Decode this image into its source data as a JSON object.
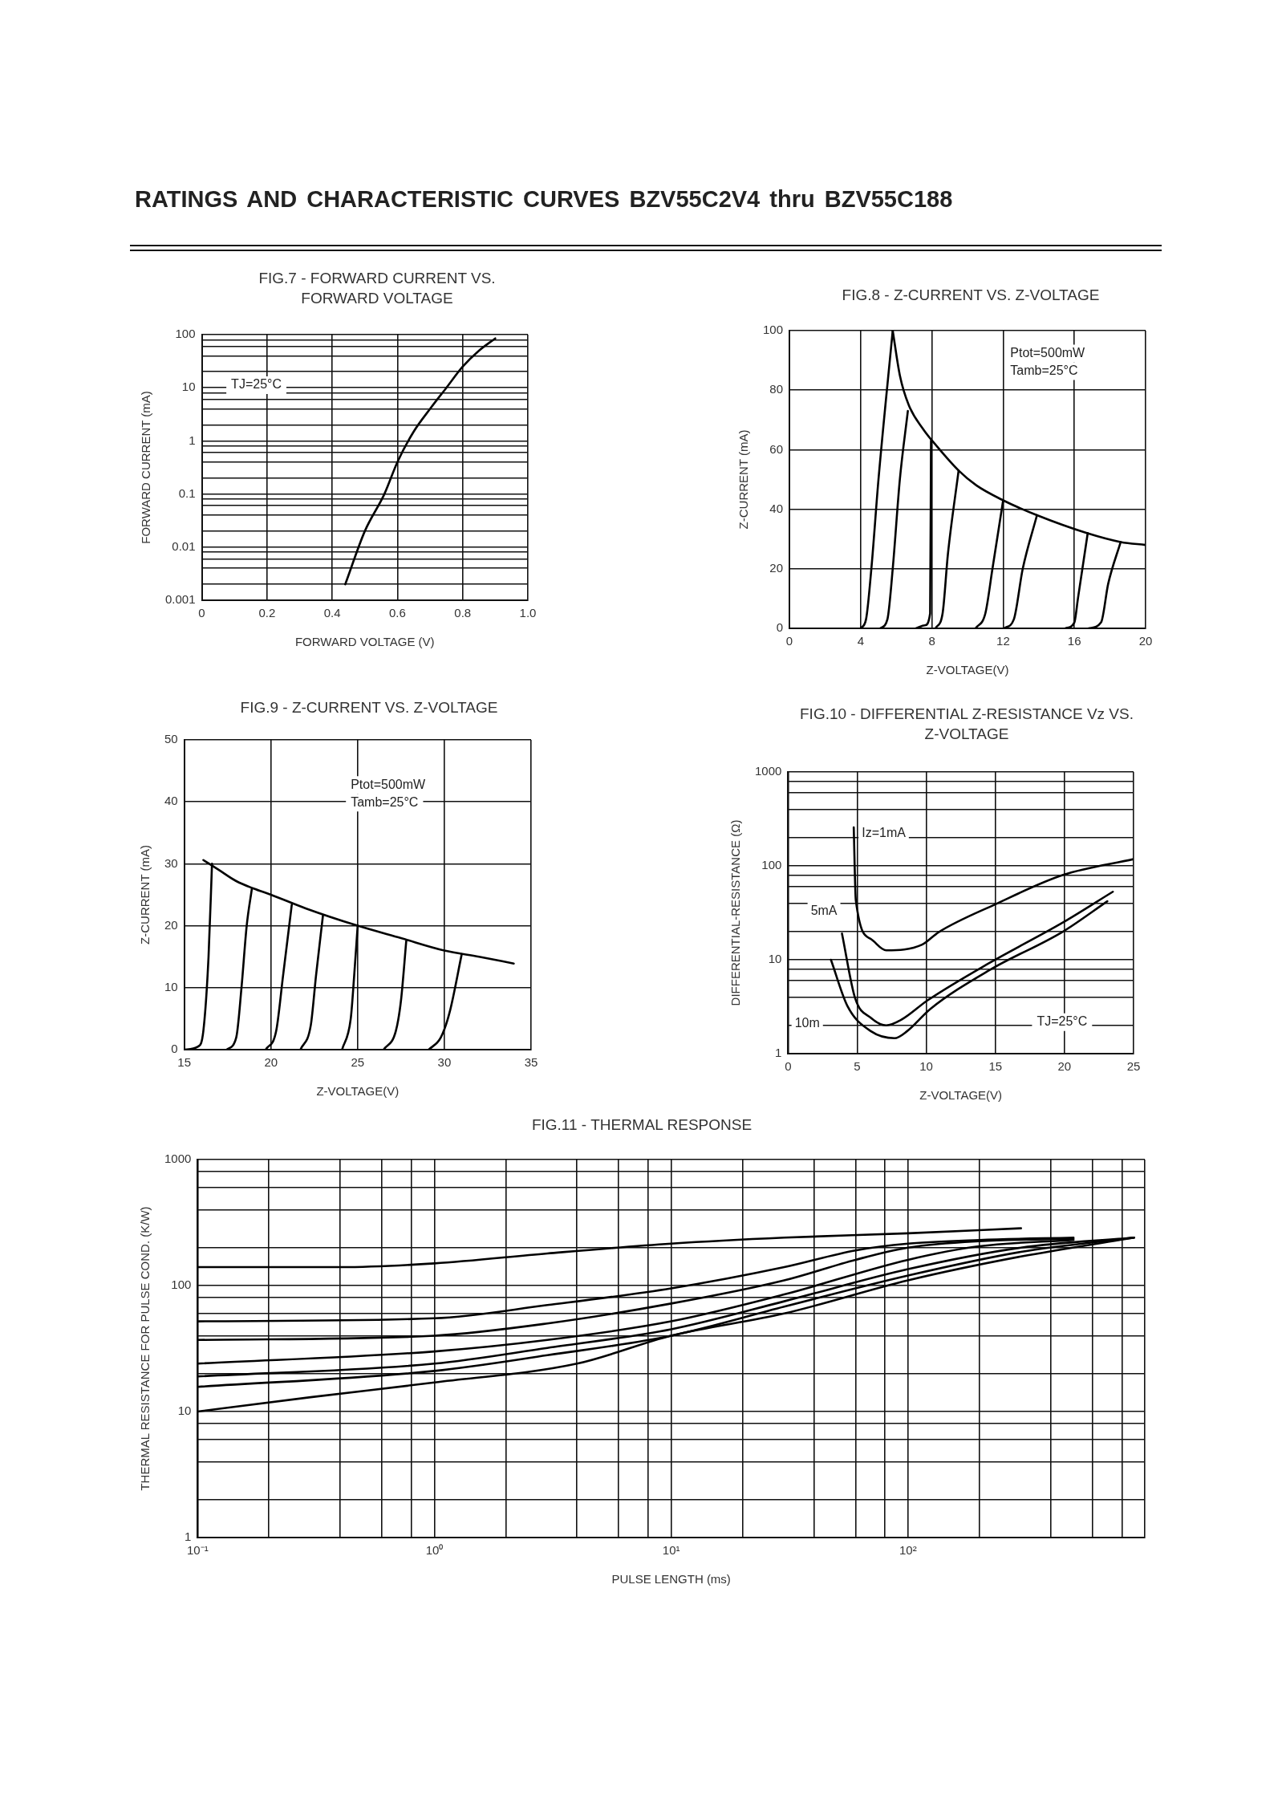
{
  "chart_data": [
    {
      "type": "other",
      "title": "RATINGS AND CHARACTERISTIC CURVES BZV55C2V4 thru BZV55C188"
    },
    {
      "type": "line",
      "title": "FIG.7 - FORWARD CURRENT VS. FORWARD VOLTAGE",
      "xlabel": "FORWARD VOLTAGE (V)",
      "ylabel": "FORWARD CURRENT (mA)",
      "log": "y",
      "grid": true,
      "marker": "none",
      "annotations": [
        "TJ=25°C"
      ],
      "xlim": [
        0,
        1
      ],
      "xticks": [
        0,
        0.2,
        0.4,
        0.6,
        0.8,
        {
          "value": 1,
          "label": "1.0"
        }
      ],
      "ylim": [
        0.001,
        100
      ],
      "yticks": [
        0.001,
        {
          "value": 0.002,
          "label": null
        },
        {
          "value": 0.004,
          "label": null
        },
        {
          "value": 0.006,
          "label": null
        },
        {
          "value": 0.008,
          "label": null
        },
        0.01,
        {
          "value": 0.02,
          "label": null
        },
        {
          "value": 0.04,
          "label": null
        },
        {
          "value": 0.06,
          "label": null
        },
        {
          "value": 0.08,
          "label": null
        },
        0.1,
        {
          "value": 0.2,
          "label": null
        },
        {
          "value": 0.4,
          "label": null
        },
        {
          "value": 0.6,
          "label": null
        },
        {
          "value": 0.8,
          "label": null
        },
        1,
        {
          "value": 2,
          "label": null
        },
        {
          "value": 4,
          "label": null
        },
        {
          "value": 6,
          "label": null
        },
        {
          "value": 8,
          "label": null
        },
        10,
        {
          "value": 20,
          "label": null
        },
        {
          "value": 40,
          "label": null
        },
        {
          "value": 60,
          "label": null
        },
        {
          "value": 80,
          "label": null
        },
        100
      ],
      "series": [
        {
          "color": "#000000",
          "x": [
            0.44,
            0.5,
            0.56,
            0.6,
            0.65,
            0.7,
            0.75,
            0.8,
            0.85,
            0.9
          ],
          "values": [
            0.002,
            0.02,
            0.1,
            0.4,
            1.5,
            4,
            10,
            25,
            50,
            85
          ]
        }
      ]
    },
    {
      "type": "line",
      "title": "FIG.8 - Z-CURRENT VS. Z-VOLTAGE",
      "xlabel": "Z-VOLTAGE(V)",
      "ylabel": "Z-CURRENT (mA)",
      "grid": true,
      "marker": "none",
      "annotations": [
        "Ptot=500mW",
        "Tamb=25°C"
      ],
      "xlim": [
        0,
        20
      ],
      "xticks": [
        0,
        4,
        8,
        12,
        16,
        20
      ],
      "ylim": [
        0,
        100
      ],
      "yticks": [
        0,
        20,
        40,
        60,
        80,
        100
      ],
      "series": [
        {
          "color": "#000000",
          "x": [
            4,
            4.3,
            4.6,
            5,
            5.8
          ],
          "values": [
            0,
            3,
            20,
            50,
            100
          ]
        },
        {
          "color": "#000000",
          "x": [
            5.1,
            5.5,
            5.8,
            6.2,
            6.65
          ],
          "values": [
            0,
            3,
            20,
            50,
            73
          ]
        },
        {
          "color": "#000000",
          "x": [
            7.1,
            7.6,
            7.9,
            7.95
          ],
          "values": [
            0,
            1,
            5,
            63
          ]
        },
        {
          "color": "#000000",
          "x": [
            8.2,
            8.6,
            8.9,
            9.5
          ],
          "values": [
            0,
            5,
            25,
            53
          ]
        },
        {
          "color": "#000000",
          "x": [
            10.45,
            11,
            11.4,
            12
          ],
          "values": [
            0,
            5,
            20,
            43
          ]
        },
        {
          "color": "#000000",
          "x": [
            12.05,
            12.6,
            13.1,
            13.9
          ],
          "values": [
            0,
            3,
            20,
            38
          ]
        },
        {
          "color": "#000000",
          "x": [
            15.5,
            16,
            16.2,
            16.75
          ],
          "values": [
            0,
            2,
            10,
            32
          ]
        },
        {
          "color": "#000000",
          "x": [
            16.8,
            17.5,
            17.9,
            18.6
          ],
          "values": [
            0,
            2,
            15,
            29
          ]
        },
        {
          "color": "#000000",
          "x": [
            5.8,
            6.2,
            6.7,
            7.5,
            8.3,
            9.5,
            10.5,
            12,
            13.9,
            16.7,
            18.6,
            20
          ],
          "values": [
            100,
            85,
            75,
            67,
            61,
            53,
            48,
            43,
            38,
            32,
            29,
            28
          ]
        }
      ]
    },
    {
      "type": "line",
      "title": "FIG.9 - Z-CURRENT VS. Z-VOLTAGE",
      "xlabel": "Z-VOLTAGE(V)",
      "ylabel": "Z-CURRENT (mA)",
      "grid": true,
      "marker": "none",
      "annotations": [
        "Ptot=500mW",
        "Tamb=25°C"
      ],
      "xlim": [
        15,
        35
      ],
      "xticks": [
        15,
        20,
        25,
        30,
        35
      ],
      "ylim": [
        0,
        50
      ],
      "yticks": [
        0,
        10,
        20,
        30,
        40,
        50
      ],
      "series": [
        {
          "color": "#000000",
          "x": [
            15,
            15.8,
            16.1,
            16.4,
            16.6
          ],
          "values": [
            0,
            0.5,
            3,
            15,
            30
          ]
        },
        {
          "color": "#000000",
          "x": [
            17.45,
            18,
            18.3,
            18.6,
            18.9
          ],
          "values": [
            0,
            2,
            10,
            20,
            26
          ]
        },
        {
          "color": "#000000",
          "x": [
            19.7,
            20.3,
            20.7,
            21.2
          ],
          "values": [
            0,
            3,
            12,
            23.4
          ]
        },
        {
          "color": "#000000",
          "x": [
            21.7,
            22.3,
            22.6,
            23
          ],
          "values": [
            0,
            4,
            12,
            21.7
          ]
        },
        {
          "color": "#000000",
          "x": [
            24.1,
            24.6,
            24.8,
            25
          ],
          "values": [
            0,
            5,
            12,
            20
          ]
        },
        {
          "color": "#000000",
          "x": [
            26.5,
            27.2,
            27.5,
            27.8
          ],
          "values": [
            0,
            3,
            8,
            17.5
          ]
        },
        {
          "color": "#000000",
          "x": [
            29.1,
            29.8,
            30.3,
            31
          ],
          "values": [
            0,
            2,
            6,
            15.4
          ]
        },
        {
          "color": "#000000",
          "x": [
            16.1,
            17,
            18,
            19,
            20,
            22,
            25,
            27.5,
            30,
            32,
            34
          ],
          "values": [
            30.6,
            29,
            27.2,
            26,
            25,
            22.8,
            20,
            18,
            16,
            15,
            13.9
          ]
        }
      ]
    },
    {
      "type": "line",
      "title": "FIG.10 - DIFFERENTIAL Z-RESISTANCE Vz VS. Z-VOLTAGE",
      "xlabel": "Z-VOLTAGE(V)",
      "ylabel": "DIFFERENTIAL-RESISTANCE (Ω)",
      "log": "y",
      "grid": true,
      "marker": "none",
      "annotations": [
        "TJ=25°C"
      ],
      "xlim": [
        0,
        25
      ],
      "xticks": [
        0,
        5,
        10,
        15,
        20,
        25
      ],
      "ylim": [
        1,
        1000
      ],
      "yticks": [
        1,
        {
          "value": 2,
          "label": null
        },
        {
          "value": 4,
          "label": null
        },
        {
          "value": 6,
          "label": null
        },
        {
          "value": 8,
          "label": null
        },
        10,
        {
          "value": 20,
          "label": null
        },
        {
          "value": 40,
          "label": null
        },
        {
          "value": 60,
          "label": null
        },
        {
          "value": 80,
          "label": null
        },
        100,
        {
          "value": 200,
          "label": null
        },
        {
          "value": 400,
          "label": null
        },
        {
          "value": 600,
          "label": null
        },
        {
          "value": 800,
          "label": null
        },
        1000
      ],
      "series": [
        {
          "name": "Iz=1mA",
          "color": "#000000",
          "x": [
            4.75,
            4.9,
            6,
            7.1,
            9.7,
            10.9,
            15,
            19.9,
            25
          ],
          "values": [
            257,
            43,
            16.6,
            12.6,
            14.5,
            19.7,
            39,
            80,
            118
          ]
        },
        {
          "name": "5mA",
          "color": "#000000",
          "x": [
            3.9,
            4.85,
            6,
            7.1,
            8.2,
            10.1,
            14.6,
            19.9,
            23.5
          ],
          "values": [
            19,
            3.9,
            2.4,
            2,
            2.3,
            3.7,
            9.3,
            25,
            53
          ]
        },
        {
          "name": "10m",
          "color": "#000000",
          "x": [
            3.1,
            4.3,
            6,
            7.7,
            8.6,
            10.3,
            14.6,
            19.9,
            23.1
          ],
          "values": [
            10,
            3.2,
            1.73,
            1.46,
            1.73,
            3,
            7.8,
            20,
            42
          ]
        }
      ]
    },
    {
      "type": "line",
      "title": "FIG.11 - THERMAL RESPONSE",
      "xlabel": "PULSE LENGTH (ms)",
      "ylabel": "THERMAL RESISTANCE FOR PULSE COND. (K/W)",
      "log": "xy",
      "grid": true,
      "marker": "none",
      "xlim": [
        0.1,
        1000
      ],
      "xticks": [
        {
          "value": 0.1,
          "label": "10⁻¹"
        },
        {
          "value": 0.2,
          "label": null
        },
        {
          "value": 0.4,
          "label": null
        },
        {
          "value": 0.6,
          "label": null
        },
        {
          "value": 0.8,
          "label": null
        },
        {
          "value": 1,
          "label": "10⁰"
        },
        {
          "value": 2,
          "label": null
        },
        {
          "value": 4,
          "label": null
        },
        {
          "value": 6,
          "label": null
        },
        {
          "value": 8,
          "label": null
        },
        {
          "value": 10,
          "label": "10¹"
        },
        {
          "value": 20,
          "label": null
        },
        {
          "value": 40,
          "label": null
        },
        {
          "value": 60,
          "label": null
        },
        {
          "value": 80,
          "label": null
        },
        {
          "value": 100,
          "label": "10²"
        },
        {
          "value": 200,
          "label": null
        },
        {
          "value": 400,
          "label": null
        },
        {
          "value": 600,
          "label": null
        },
        {
          "value": 800,
          "label": null
        },
        {
          "value": 1000,
          "label": null
        }
      ],
      "ylim": [
        1,
        1000
      ],
      "yticks": [
        1,
        {
          "value": 2,
          "label": null
        },
        {
          "value": 4,
          "label": null
        },
        {
          "value": 6,
          "label": null
        },
        {
          "value": 8,
          "label": null
        },
        10,
        {
          "value": 20,
          "label": null
        },
        {
          "value": 40,
          "label": null
        },
        {
          "value": 60,
          "label": null
        },
        {
          "value": 80,
          "label": null
        },
        100,
        {
          "value": 200,
          "label": null
        },
        {
          "value": 400,
          "label": null
        },
        {
          "value": 600,
          "label": null
        },
        {
          "value": 800,
          "label": null
        },
        1000
      ],
      "series": [
        {
          "color": "#000000",
          "x": [
            0.1,
            0.4,
            1,
            3,
            10,
            30,
            100,
            300
          ],
          "values": [
            140,
            140,
            150,
            180,
            215,
            240,
            260,
            285
          ]
        },
        {
          "color": "#000000",
          "x": [
            0.1,
            1,
            3,
            10,
            30,
            60,
            100,
            200,
            500
          ],
          "values": [
            52,
            55,
            70,
            95,
            140,
            190,
            215,
            230,
            240
          ]
        },
        {
          "color": "#000000",
          "x": [
            0.1,
            1,
            3,
            10,
            30,
            60,
            100,
            200,
            500
          ],
          "values": [
            37,
            40,
            50,
            72,
            110,
            160,
            200,
            225,
            235
          ]
        },
        {
          "color": "#000000",
          "x": [
            0.1,
            1,
            3,
            10,
            30,
            100,
            200,
            500
          ],
          "values": [
            24,
            30,
            37,
            52,
            85,
            160,
            205,
            230
          ]
        },
        {
          "color": "#000000",
          "x": [
            0.1,
            1,
            3,
            10,
            30,
            100,
            300,
            900
          ],
          "values": [
            19,
            24,
            32,
            45,
            75,
            135,
            200,
            240
          ]
        },
        {
          "color": "#000000",
          "x": [
            0.1,
            1,
            3,
            10,
            30,
            100,
            300,
            900
          ],
          "values": [
            15.7,
            21,
            28,
            40,
            68,
            120,
            185,
            240
          ]
        },
        {
          "color": "#000000",
          "x": [
            0.1,
            0.3,
            1,
            4,
            10,
            30,
            100,
            300,
            900
          ],
          "values": [
            10,
            13,
            17,
            24,
            40,
            60,
            110,
            170,
            240
          ]
        }
      ]
    }
  ]
}
